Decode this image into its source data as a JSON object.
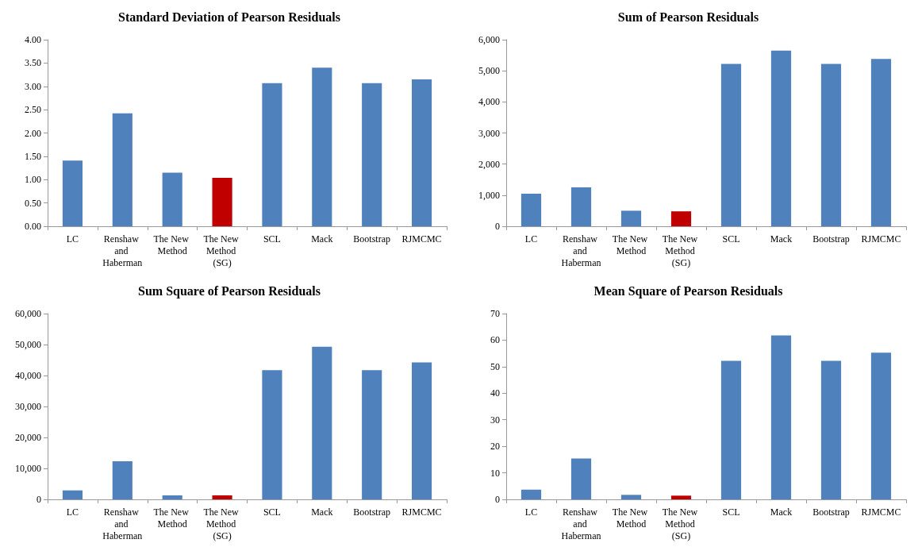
{
  "chart_data": [
    {
      "type": "bar",
      "title": "Standard Deviation of Pearson Residuals",
      "categories": [
        "LC",
        "Renshaw and Haberman",
        "The New Method",
        "The New Method (SG)",
        "SCL",
        "Mack",
        "Bootstrap",
        "RJMCMC"
      ],
      "values": [
        1.41,
        2.42,
        1.15,
        1.04,
        3.07,
        3.4,
        3.07,
        3.15
      ],
      "colors": [
        "#4f81bd",
        "#4f81bd",
        "#4f81bd",
        "#c00000",
        "#4f81bd",
        "#4f81bd",
        "#4f81bd",
        "#4f81bd"
      ],
      "ylim": [
        0,
        4
      ],
      "yticks": [
        {
          "value": 0,
          "label": "0.00"
        },
        {
          "value": 0.5,
          "label": "0.50"
        },
        {
          "value": 1,
          "label": "1.00"
        },
        {
          "value": 1.5,
          "label": "1.50"
        },
        {
          "value": 2,
          "label": "2.00"
        },
        {
          "value": 2.5,
          "label": "2.50"
        },
        {
          "value": 3,
          "label": "3.00"
        },
        {
          "value": 3.5,
          "label": "3.50"
        },
        {
          "value": 4,
          "label": "4.00"
        }
      ],
      "grid": false
    },
    {
      "type": "bar",
      "title": "Sum of Pearson Residuals",
      "categories": [
        "LC",
        "Renshaw and Haberman",
        "The New Method",
        "The New Method (SG)",
        "SCL",
        "Mack",
        "Bootstrap",
        "RJMCMC"
      ],
      "values": [
        1050,
        1250,
        500,
        480,
        5220,
        5650,
        5220,
        5380
      ],
      "colors": [
        "#4f81bd",
        "#4f81bd",
        "#4f81bd",
        "#c00000",
        "#4f81bd",
        "#4f81bd",
        "#4f81bd",
        "#4f81bd"
      ],
      "ylim": [
        0,
        6000
      ],
      "yticks": [
        0,
        {
          "value": 1000,
          "label": "1,000"
        },
        {
          "value": 2000,
          "label": "2,000"
        },
        {
          "value": 3000,
          "label": "3,000"
        },
        {
          "value": 4000,
          "label": "4,000"
        },
        {
          "value": 5000,
          "label": "5,000"
        },
        {
          "value": 6000,
          "label": "6,000"
        }
      ],
      "grid": false
    },
    {
      "type": "bar",
      "title": "Sum Square of Pearson Residuals",
      "categories": [
        "LC",
        "Renshaw and Haberman",
        "The New Method",
        "The New Method (SG)",
        "SCL",
        "Mack",
        "Bootstrap",
        "RJMCMC"
      ],
      "values": [
        2900,
        12300,
        1300,
        1300,
        41700,
        49300,
        41700,
        44200
      ],
      "colors": [
        "#4f81bd",
        "#4f81bd",
        "#4f81bd",
        "#c00000",
        "#4f81bd",
        "#4f81bd",
        "#4f81bd",
        "#4f81bd"
      ],
      "ylim": [
        0,
        60000
      ],
      "yticks": [
        0,
        {
          "value": 10000,
          "label": "10,000"
        },
        {
          "value": 20000,
          "label": "20,000"
        },
        {
          "value": 30000,
          "label": "30,000"
        },
        {
          "value": 40000,
          "label": "40,000"
        },
        {
          "value": 50000,
          "label": "50,000"
        },
        {
          "value": 60000,
          "label": "60,000"
        }
      ],
      "grid": false
    },
    {
      "type": "bar",
      "title": "Mean Square of Pearson Residuals",
      "categories": [
        "LC",
        "Renshaw and Haberman",
        "The New Method",
        "The New Method (SG)",
        "SCL",
        "Mack",
        "Bootstrap",
        "RJMCMC"
      ],
      "values": [
        3.7,
        15.4,
        1.7,
        1.4,
        52.2,
        61.8,
        52.2,
        55.3
      ],
      "colors": [
        "#4f81bd",
        "#4f81bd",
        "#4f81bd",
        "#c00000",
        "#4f81bd",
        "#4f81bd",
        "#4f81bd",
        "#4f81bd"
      ],
      "ylim": [
        0,
        70
      ],
      "yticks": [
        0,
        10,
        20,
        30,
        40,
        50,
        60,
        70
      ],
      "grid": false
    }
  ]
}
